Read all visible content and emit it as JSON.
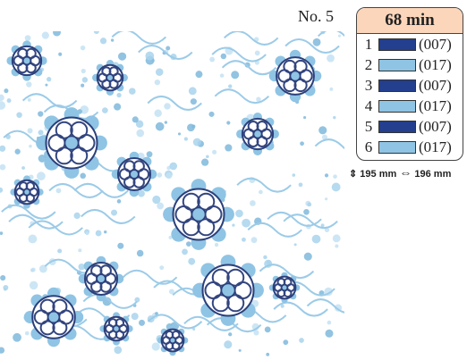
{
  "design": {
    "number": "No. 5",
    "time": "68 min",
    "threads": [
      {
        "index": "1",
        "code": "(007)",
        "color": "#233f8e"
      },
      {
        "index": "2",
        "code": "(017)",
        "color": "#8fc4e4"
      },
      {
        "index": "3",
        "code": "(007)",
        "color": "#233f8e"
      },
      {
        "index": "4",
        "code": "(017)",
        "color": "#8fc4e4"
      },
      {
        "index": "5",
        "code": "(007)",
        "color": "#233f8e"
      },
      {
        "index": "6",
        "code": "(017)",
        "color": "#8fc4e4"
      }
    ],
    "height": "195 mm",
    "width": "196 mm"
  }
}
